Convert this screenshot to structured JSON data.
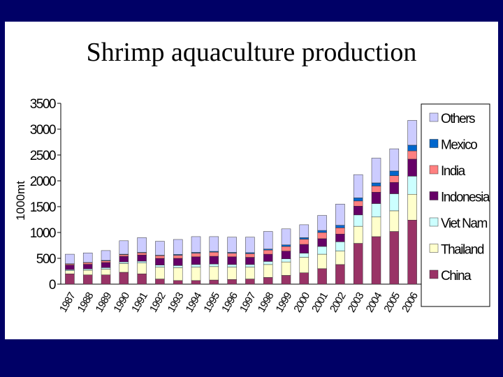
{
  "slide_title": "Shrimp aquaculture production",
  "chart_data": {
    "type": "bar",
    "stacked": true,
    "title": "Shrimp aquaculture production",
    "ylabel": "1000mt",
    "xlabel": "",
    "ylim": [
      0,
      3500
    ],
    "yticks": [
      0,
      500,
      1000,
      1500,
      2000,
      2500,
      3000,
      3500
    ],
    "grid": false,
    "legend_position": "right",
    "categories": [
      "1987",
      "1988",
      "1989",
      "1990",
      "1991",
      "1992",
      "1993",
      "1994",
      "1995",
      "1996",
      "1997",
      "1998",
      "1999",
      "2000",
      "2001",
      "2002",
      "2003",
      "2004",
      "2005",
      "2006"
    ],
    "series": [
      {
        "name": "China",
        "color": "#993366",
        "values": [
          200,
          180,
          180,
          230,
          200,
          100,
          70,
          70,
          80,
          90,
          100,
          130,
          170,
          220,
          300,
          380,
          790,
          920,
          1020,
          1240
        ]
      },
      {
        "name": "Thailand",
        "color": "#ffffcc",
        "values": [
          60,
          90,
          110,
          170,
          210,
          230,
          250,
          260,
          260,
          240,
          230,
          250,
          260,
          300,
          280,
          260,
          330,
          380,
          400,
          500
        ]
      },
      {
        "name": "Viet Nam",
        "color": "#ccffff",
        "values": [
          20,
          25,
          30,
          30,
          35,
          40,
          40,
          50,
          50,
          50,
          50,
          60,
          60,
          80,
          150,
          180,
          220,
          260,
          330,
          350
        ]
      },
      {
        "name": "Indonesia",
        "color": "#660066",
        "values": [
          90,
          90,
          100,
          110,
          120,
          130,
          140,
          150,
          150,
          150,
          140,
          140,
          150,
          170,
          150,
          150,
          170,
          220,
          220,
          330
        ]
      },
      {
        "name": "India",
        "color": "#ff8080",
        "values": [
          20,
          30,
          30,
          30,
          40,
          50,
          60,
          70,
          80,
          70,
          70,
          80,
          90,
          100,
          120,
          120,
          100,
          120,
          130,
          160
        ]
      },
      {
        "name": "Mexico",
        "color": "#0066cc",
        "values": [
          5,
          5,
          10,
          10,
          10,
          10,
          15,
          15,
          15,
          15,
          20,
          20,
          30,
          30,
          40,
          50,
          60,
          60,
          90,
          110
        ]
      },
      {
        "name": "Others",
        "color": "#ccccff",
        "values": [
          185,
          185,
          190,
          260,
          285,
          270,
          290,
          305,
          285,
          295,
          300,
          340,
          310,
          250,
          290,
          410,
          450,
          480,
          430,
          480
        ]
      }
    ]
  }
}
